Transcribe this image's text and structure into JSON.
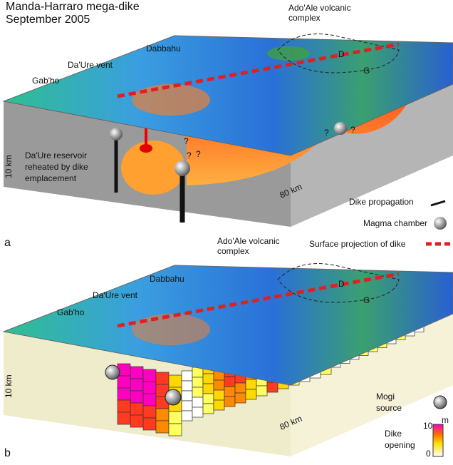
{
  "panel_a": {
    "title": [
      "Manda-Harraro mega-dike",
      "September 2005"
    ],
    "volcanic_complex": [
      "Ado'Ale volcanic",
      "complex"
    ],
    "d_label": "D",
    "g_label": "G",
    "vent": "Da'Ure vent",
    "dabbahu": "Dabbahu",
    "gabho": "Gab'ho",
    "depth": "10 km",
    "length": "80 km",
    "reservoir": [
      "Da'Ure reservoir",
      "reheated by dike",
      "emplacement"
    ],
    "question_marks": [
      "?",
      "?",
      "?",
      "?",
      "?"
    ],
    "legend": [
      "Dike propagation",
      "Magma chamber",
      "Surface projection of dike"
    ],
    "panel_letter": "a"
  },
  "panel_b": {
    "volcanic_complex": [
      "Ado'Ale volcanic",
      "complex"
    ],
    "d_label": "D",
    "g_label": "G",
    "vent": "Da'Ure vent",
    "dabbahu": "Dabbahu",
    "gabho": "Gab'ho",
    "depth": "10 km",
    "length": "80 km",
    "mogi": [
      "Mogi",
      "source"
    ],
    "opening": [
      "Dike",
      "opening"
    ],
    "colorbar_max": "10",
    "colorbar_unit": "m",
    "colorbar_min": "0",
    "panel_letter": "b"
  }
}
